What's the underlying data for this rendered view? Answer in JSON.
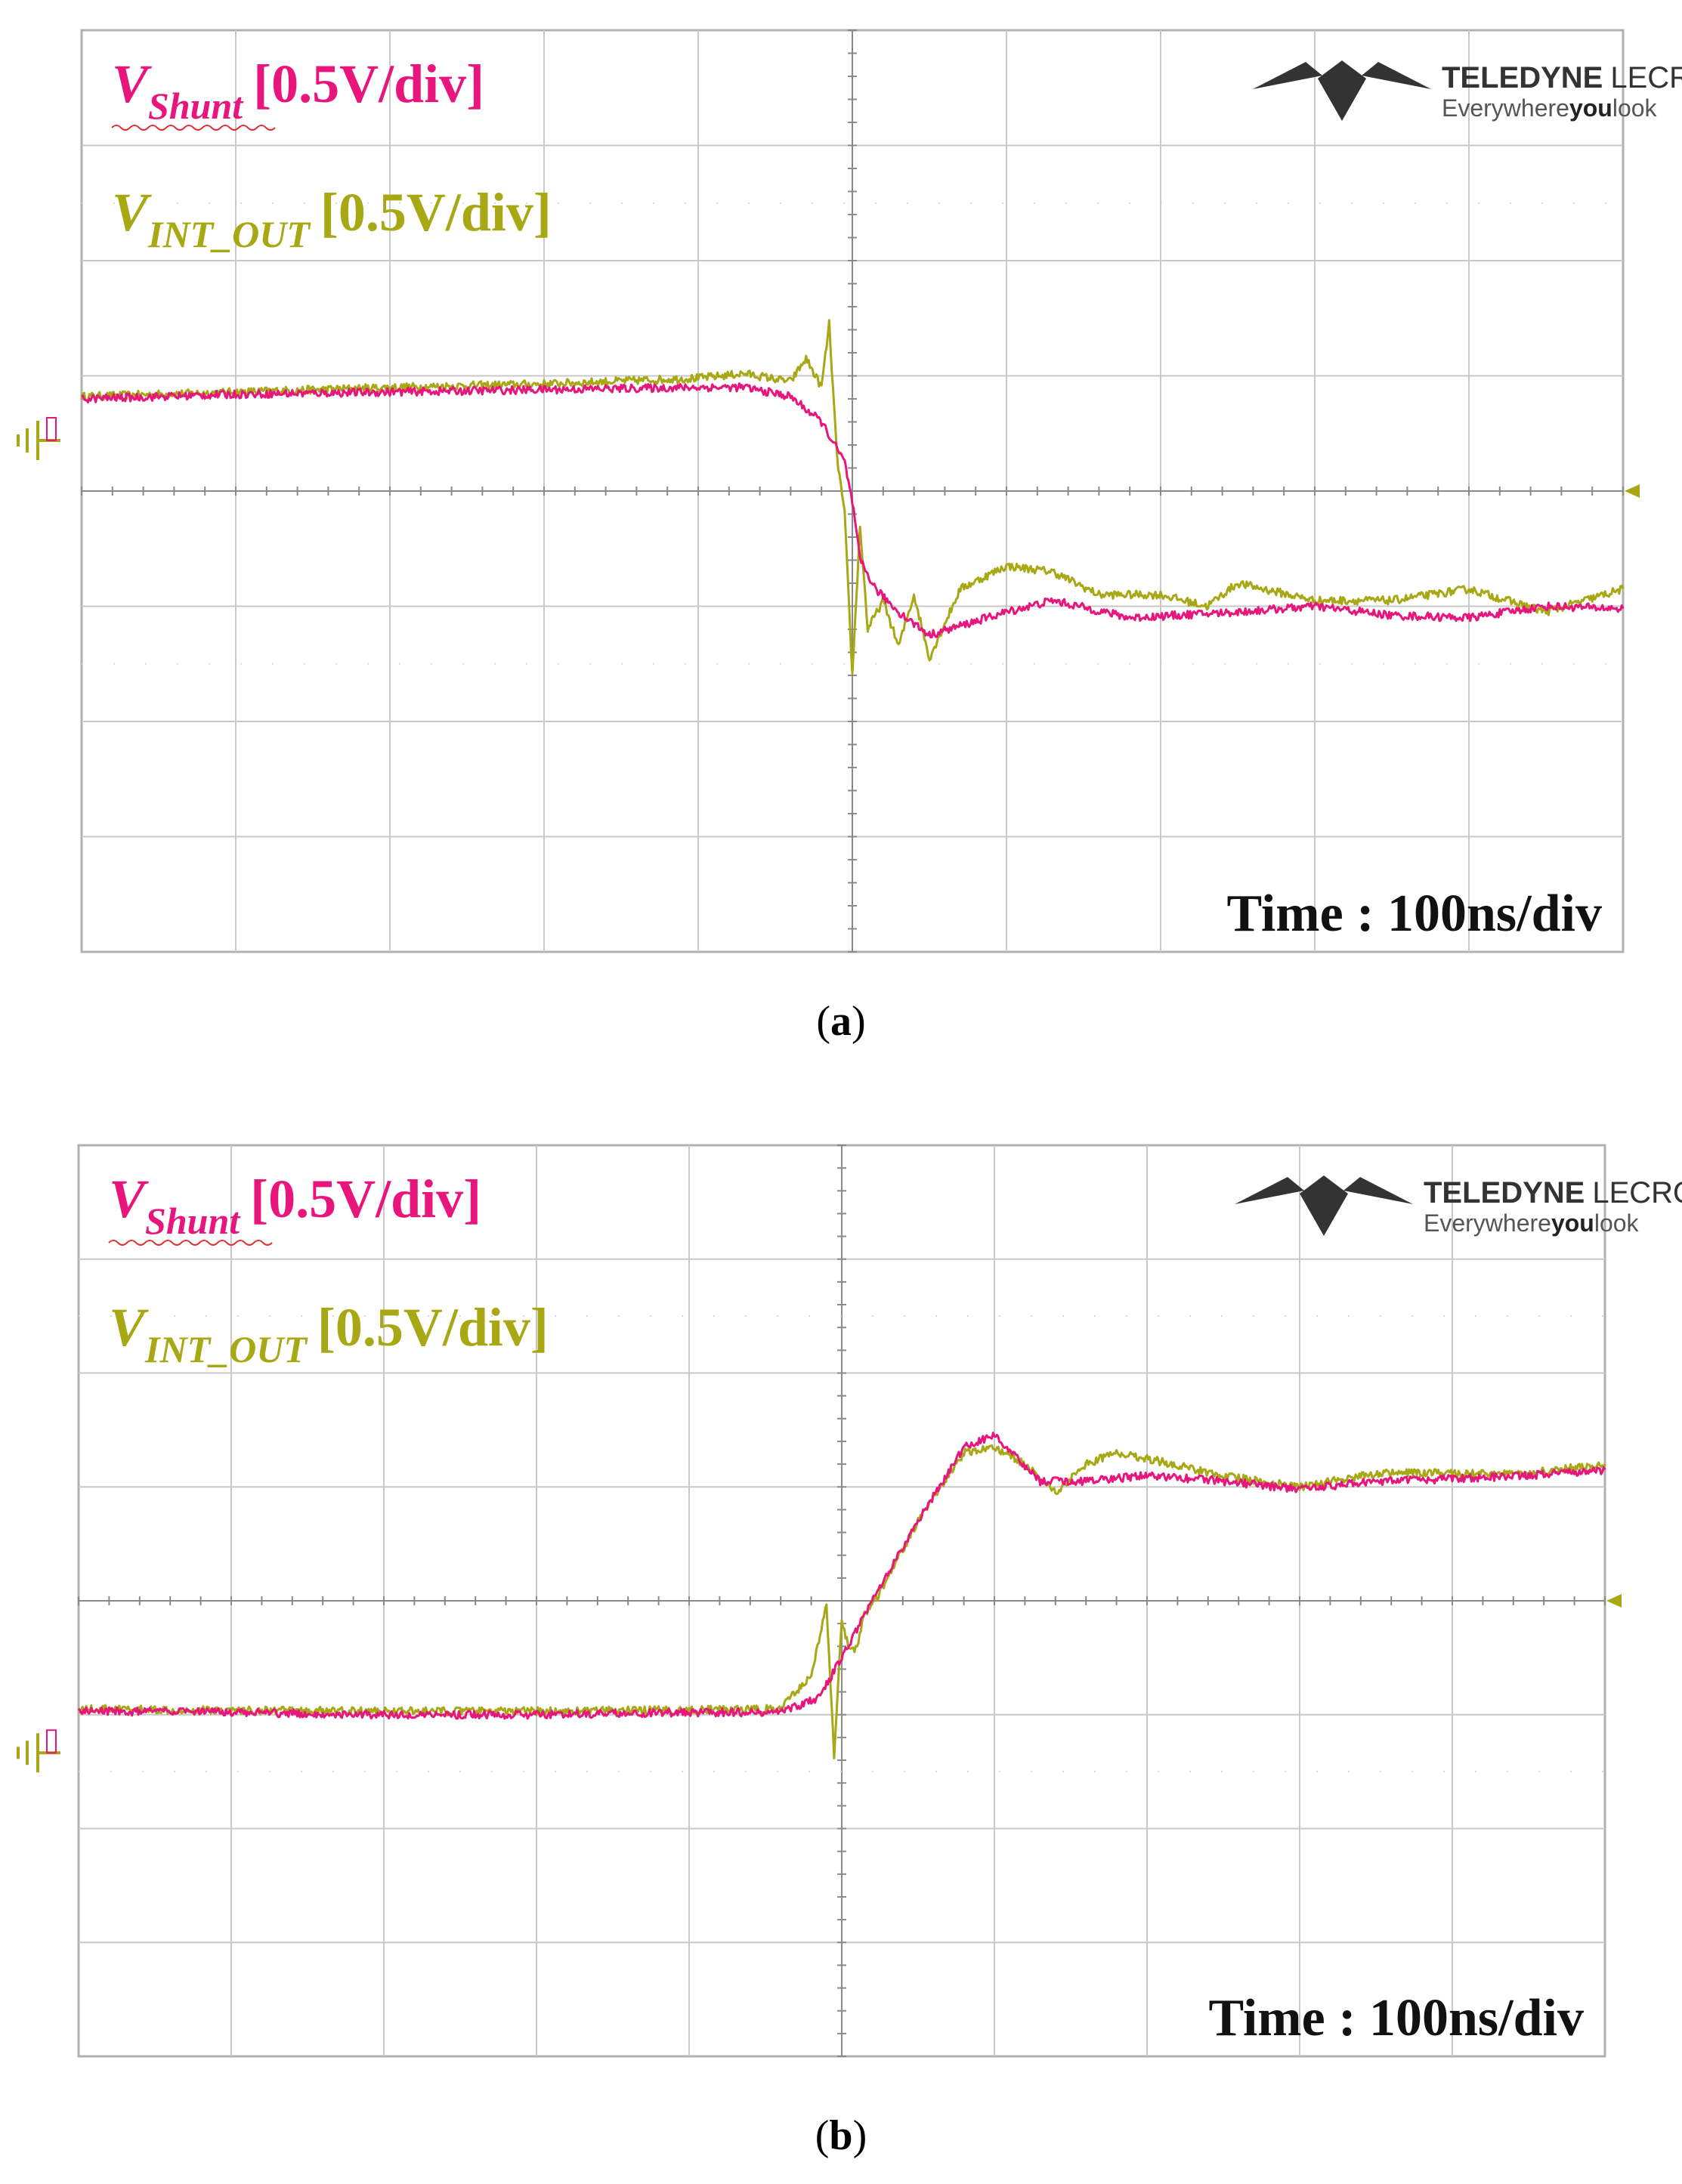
{
  "colors": {
    "shunt": "#e8157d",
    "int_out": "#a8a814",
    "grid": "#c8c8c8",
    "frame": "#b0b0b0",
    "logo": "#333333"
  },
  "chart_data": [
    {
      "type": "line",
      "id": "a",
      "caption": "(a)",
      "caption_letter": "a",
      "trace_labels": [
        {
          "symbol": "V",
          "sub": "Shunt",
          "scale": "[0.5V/div]",
          "color": "shunt"
        },
        {
          "symbol": "V",
          "sub": "INT_OUT",
          "scale": "[0.5V/div]",
          "color": "int_out"
        }
      ],
      "timebase_label": "Time : 100ns/div",
      "logo": {
        "brand": "TELEDYNE",
        "brand2": "LECROY",
        "tagline_a": "Everywhere",
        "tagline_b": "you",
        "tagline_c": "look"
      },
      "grid": {
        "x_divisions": 10,
        "y_divisions": 8
      },
      "xlim": [
        0,
        10
      ],
      "ylim": [
        -4,
        4
      ],
      "xlabel": "",
      "ylabel": "",
      "series": [
        {
          "name": "V_Shunt",
          "color": "shunt",
          "x": [
            0,
            1,
            2,
            3,
            4,
            4.3,
            4.6,
            4.8,
            4.95,
            5.0,
            5.05,
            5.15,
            5.3,
            5.5,
            6.0,
            6.3,
            6.8,
            7.5,
            8.0,
            8.5,
            9.0,
            9.5,
            10.0
          ],
          "y": [
            0.8,
            0.84,
            0.86,
            0.88,
            0.9,
            0.9,
            0.82,
            0.6,
            0.25,
            -0.1,
            -0.6,
            -0.85,
            -1.05,
            -1.25,
            -1.05,
            -0.95,
            -1.1,
            -1.05,
            -1.0,
            -1.08,
            -1.1,
            -1.0,
            -1.02
          ]
        },
        {
          "name": "V_INT_OUT",
          "color": "int_out",
          "x": [
            0,
            1,
            2,
            3,
            4,
            4.3,
            4.6,
            4.7,
            4.8,
            4.85,
            4.9,
            4.95,
            5.0,
            5.05,
            5.1,
            5.2,
            5.3,
            5.4,
            5.5,
            5.7,
            6.0,
            6.3,
            6.6,
            7.0,
            7.3,
            7.5,
            8.0,
            8.5,
            9.0,
            9.5,
            10.0
          ],
          "y": [
            0.82,
            0.86,
            0.9,
            0.93,
            0.98,
            1.02,
            0.95,
            1.15,
            0.9,
            1.45,
            0.3,
            -0.2,
            -1.6,
            -0.3,
            -1.2,
            -0.95,
            -1.35,
            -0.9,
            -1.45,
            -0.85,
            -0.65,
            -0.7,
            -0.9,
            -0.9,
            -1.0,
            -0.8,
            -0.95,
            -0.95,
            -0.85,
            -1.05,
            -0.85
          ]
        }
      ]
    },
    {
      "type": "line",
      "id": "b",
      "caption": "(b)",
      "caption_letter": "b",
      "trace_labels": [
        {
          "symbol": "V",
          "sub": "Shunt",
          "scale": "[0.5V/div]",
          "color": "shunt"
        },
        {
          "symbol": "V",
          "sub": "INT_OUT",
          "scale": "[0.5V/div]",
          "color": "int_out"
        }
      ],
      "timebase_label": "Time : 100ns/div",
      "logo": {
        "brand": "TELEDYNE",
        "brand2": "LECROY",
        "tagline_a": "Everywhere",
        "tagline_b": "you",
        "tagline_c": "look"
      },
      "grid": {
        "x_divisions": 10,
        "y_divisions": 8
      },
      "xlim": [
        0,
        10
      ],
      "ylim": [
        -4,
        4
      ],
      "xlabel": "",
      "ylabel": "",
      "series": [
        {
          "name": "V_Shunt",
          "color": "shunt",
          "x": [
            0,
            1,
            2,
            3,
            4,
            4.6,
            4.85,
            5.0,
            5.2,
            5.5,
            5.8,
            6.0,
            6.3,
            6.6,
            7.0,
            7.5,
            8.0,
            8.5,
            9.0,
            9.5,
            10.0
          ],
          "y": [
            -0.97,
            -0.98,
            -1.0,
            -1.0,
            -0.98,
            -0.98,
            -0.85,
            -0.5,
            0.0,
            0.7,
            1.35,
            1.45,
            1.05,
            1.05,
            1.1,
            1.05,
            0.98,
            1.05,
            1.07,
            1.1,
            1.15
          ]
        },
        {
          "name": "V_INT_OUT",
          "color": "int_out",
          "x": [
            0,
            1,
            2,
            3,
            4,
            4.6,
            4.8,
            4.9,
            4.95,
            5.0,
            5.05,
            5.1,
            5.15,
            5.2,
            5.5,
            5.8,
            6.0,
            6.2,
            6.4,
            6.6,
            6.8,
            7.0,
            7.5,
            8.0,
            8.5,
            9.0,
            9.5,
            10.0
          ],
          "y": [
            -0.95,
            -0.96,
            -0.97,
            -0.97,
            -0.96,
            -0.95,
            -0.65,
            -0.05,
            -1.35,
            -0.15,
            -0.45,
            -0.4,
            -0.1,
            -0.05,
            0.7,
            1.3,
            1.35,
            1.2,
            0.95,
            1.2,
            1.3,
            1.25,
            1.1,
            1.0,
            1.12,
            1.12,
            1.12,
            1.2
          ]
        }
      ]
    }
  ]
}
